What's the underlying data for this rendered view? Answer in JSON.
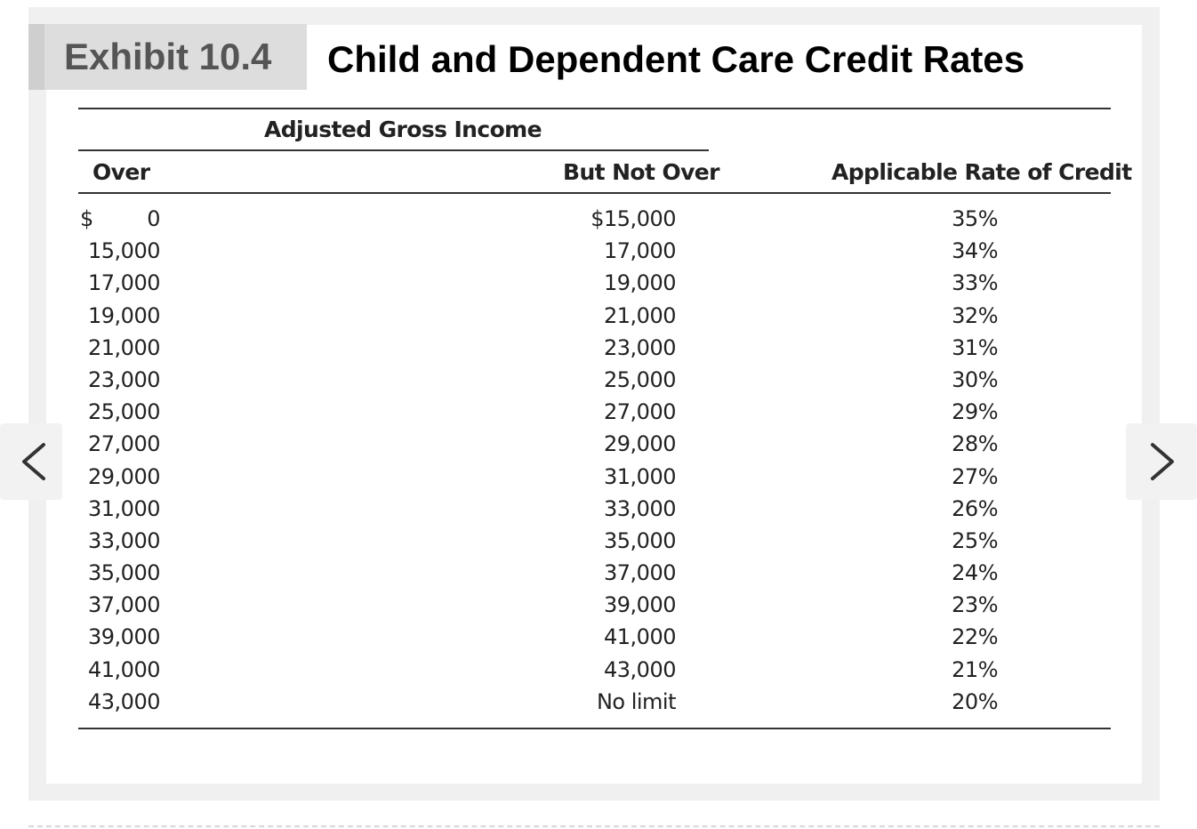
{
  "exhibit": {
    "label": "Exhibit 10.4",
    "title": "Child and Dependent Care Credit Rates"
  },
  "table": {
    "group_header": "Adjusted Gross Income",
    "columns": {
      "over": "Over",
      "but_not_over": "But Not Over",
      "rate": "Applicable Rate of Credit"
    },
    "first_row_dollar": "$",
    "rows": [
      {
        "over": "0",
        "but_not_over": "$15,000",
        "rate": "35%"
      },
      {
        "over": "15,000",
        "but_not_over": "17,000",
        "rate": "34%"
      },
      {
        "over": "17,000",
        "but_not_over": "19,000",
        "rate": "33%"
      },
      {
        "over": "19,000",
        "but_not_over": "21,000",
        "rate": "32%"
      },
      {
        "over": "21,000",
        "but_not_over": "23,000",
        "rate": "31%"
      },
      {
        "over": "23,000",
        "but_not_over": "25,000",
        "rate": "30%"
      },
      {
        "over": "25,000",
        "but_not_over": "27,000",
        "rate": "29%"
      },
      {
        "over": "27,000",
        "but_not_over": "29,000",
        "rate": "28%"
      },
      {
        "over": "29,000",
        "but_not_over": "31,000",
        "rate": "27%"
      },
      {
        "over": "31,000",
        "but_not_over": "33,000",
        "rate": "26%"
      },
      {
        "over": "33,000",
        "but_not_over": "35,000",
        "rate": "25%"
      },
      {
        "over": "35,000",
        "but_not_over": "37,000",
        "rate": "24%"
      },
      {
        "over": "37,000",
        "but_not_over": "39,000",
        "rate": "23%"
      },
      {
        "over": "39,000",
        "but_not_over": "41,000",
        "rate": "22%"
      },
      {
        "over": "41,000",
        "but_not_over": "43,000",
        "rate": "21%"
      },
      {
        "over": "43,000",
        "but_not_over": "No limit",
        "rate": "20%"
      }
    ]
  },
  "nav": {
    "prev_icon": "chevron-left-icon",
    "next_icon": "chevron-right-icon"
  },
  "colors": {
    "frame": "#f0f0f0",
    "label_bg": "#dddddd",
    "label_text": "#555555",
    "rule": "#333333"
  }
}
